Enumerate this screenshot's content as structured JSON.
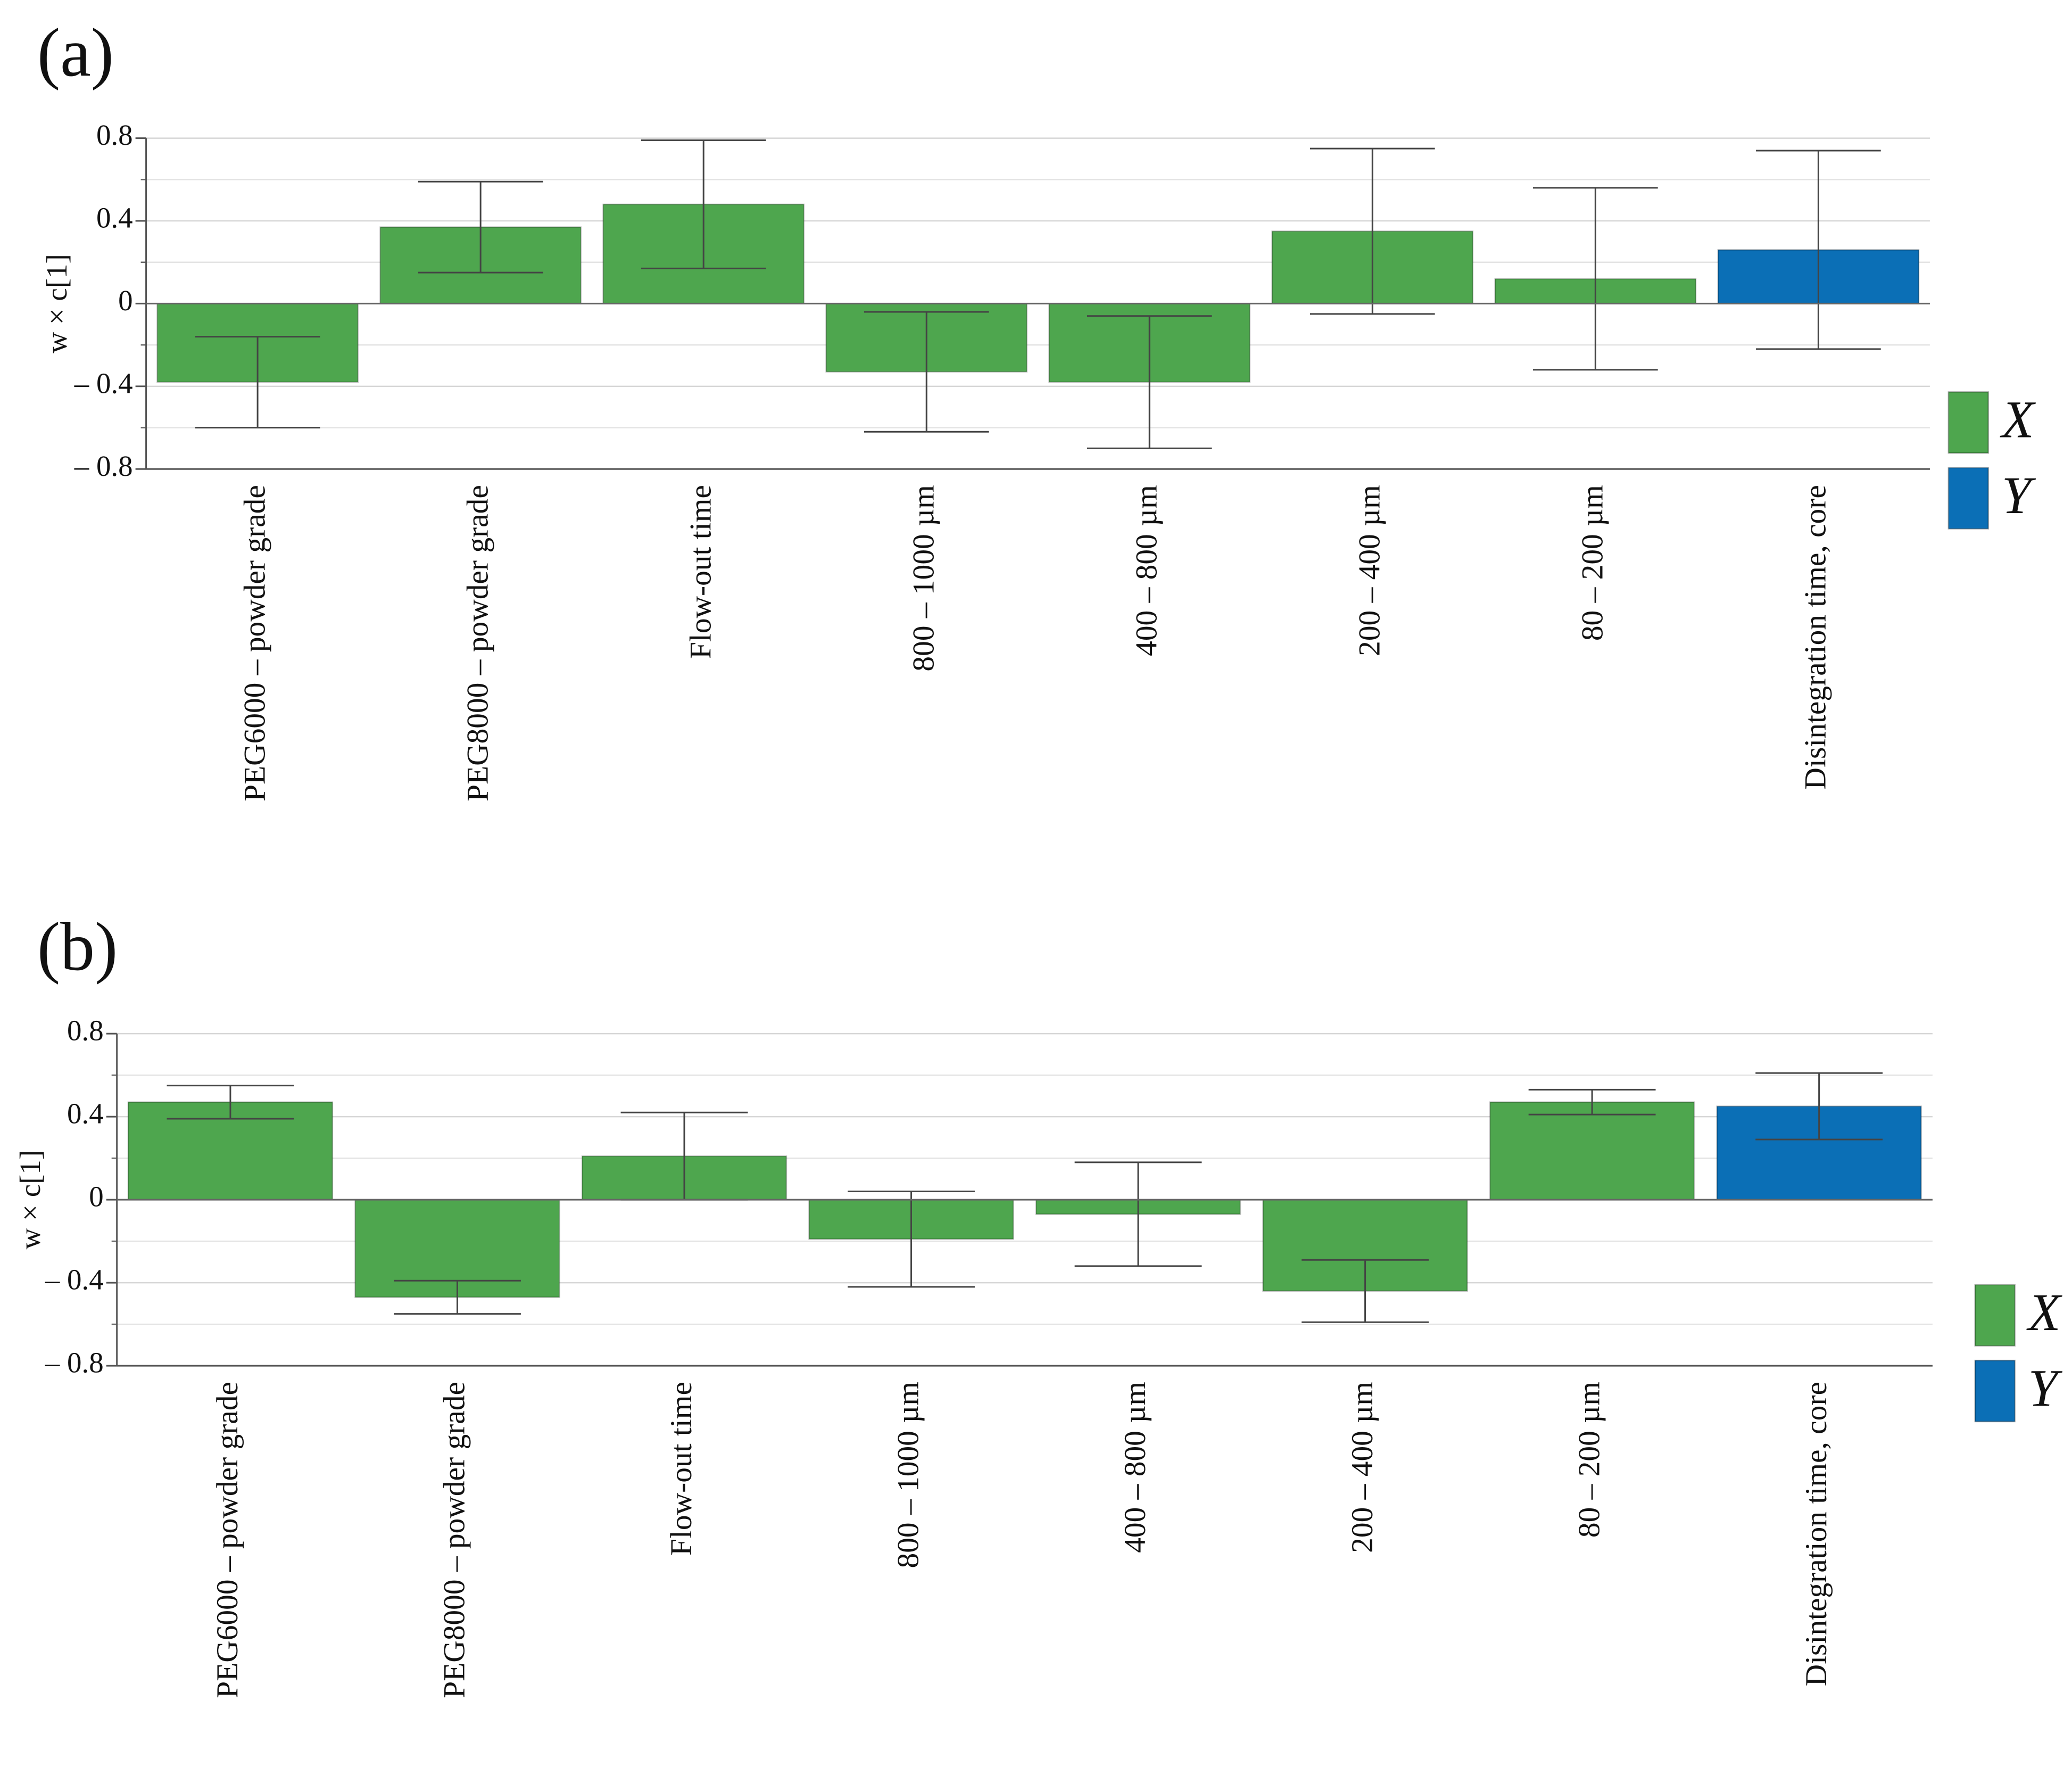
{
  "chart_data": [
    {
      "type": "bar",
      "label": "(a)",
      "ylabel": "w × c[1]",
      "categories": [
        "PEG6000 – powder grade",
        "PEG8000 – powder grade",
        "Flow-out time",
        "800 – 1000 µm",
        "400 – 800 µm",
        "200 – 400 µm",
        "80 – 200 µm",
        "Disintegration time, core"
      ],
      "series": [
        {
          "name": "X",
          "color": "#4ea64e",
          "values": [
            -0.38,
            0.37,
            0.48,
            -0.33,
            -0.38,
            0.35,
            0.12,
            null
          ],
          "errors": [
            0.22,
            0.22,
            0.31,
            0.29,
            0.32,
            0.4,
            0.44,
            null
          ]
        },
        {
          "name": "Y",
          "color": "#0b6fb6",
          "values": [
            null,
            null,
            null,
            null,
            null,
            null,
            null,
            0.26
          ],
          "errors": [
            null,
            null,
            null,
            null,
            null,
            null,
            null,
            0.48
          ]
        }
      ],
      "ylim": [
        -0.8,
        0.8
      ],
      "yticks": [
        0.8,
        0.4,
        0,
        {
          "value": -0.4,
          "label": "– 0.4"
        },
        {
          "value": -0.8,
          "label": "– 0.8"
        }
      ],
      "yminor_ticks": [
        0.6,
        0.2,
        -0.2,
        -0.6
      ],
      "grid": true
    },
    {
      "type": "bar",
      "label": "(b)",
      "ylabel": "w × c[1]",
      "categories": [
        "PEG6000 – powder grade",
        "PEG8000 – powder grade",
        "Flow-out time",
        "800 – 1000 µm",
        "400 – 800 µm",
        "200 – 400 µm",
        "80 – 200 µm",
        "Disintegration time, core"
      ],
      "series": [
        {
          "name": "X",
          "color": "#4ea64e",
          "values": [
            0.47,
            -0.47,
            0.21,
            -0.19,
            -0.07,
            -0.44,
            0.47,
            null
          ],
          "errors": [
            0.08,
            0.08,
            0.21,
            0.23,
            0.25,
            0.15,
            0.06,
            null
          ]
        },
        {
          "name": "Y",
          "color": "#0b6fb6",
          "values": [
            null,
            null,
            null,
            null,
            null,
            null,
            null,
            0.45
          ],
          "errors": [
            null,
            null,
            null,
            null,
            null,
            null,
            null,
            0.16
          ]
        }
      ],
      "ylim": [
        -0.8,
        0.8
      ],
      "yticks": [
        0.8,
        0.4,
        0,
        {
          "value": -0.4,
          "label": "– 0.4"
        },
        {
          "value": -0.8,
          "label": "– 0.8"
        }
      ],
      "yminor_ticks": [
        0.6,
        0.2,
        -0.2,
        -0.6
      ],
      "grid": true
    }
  ]
}
